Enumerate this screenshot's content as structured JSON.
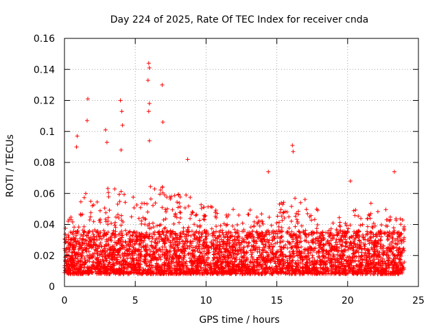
{
  "chart_data": {
    "type": "scatter",
    "title": "Day 224 of 2025, Rate Of TEC Index for receiver cnda",
    "xlabel": "GPS time / hours",
    "ylabel": "ROTI / TECUs",
    "xlim": [
      0,
      25
    ],
    "ylim": [
      0,
      0.16
    ],
    "x_ticks": [
      0,
      5,
      10,
      15,
      20,
      25
    ],
    "x_tick_labels": [
      "0",
      "5",
      "10",
      "15",
      "20",
      "25"
    ],
    "y_ticks": [
      0,
      0.02,
      0.04,
      0.06,
      0.08,
      0.1,
      0.12,
      0.14,
      0.16
    ],
    "y_tick_labels": [
      "0",
      "0.02",
      "0.04",
      "0.06",
      "0.08",
      "0.1",
      "0.12",
      "0.14",
      "0.16"
    ],
    "grid": true,
    "marker": "+",
    "series_color": "#ff0000",
    "series": [
      {
        "name": "ROTI",
        "notable_points": [
          {
            "x": 0.9,
            "y": 0.097
          },
          {
            "x": 0.85,
            "y": 0.09
          },
          {
            "x": 1.6,
            "y": 0.107
          },
          {
            "x": 1.65,
            "y": 0.121
          },
          {
            "x": 2.9,
            "y": 0.101
          },
          {
            "x": 3.0,
            "y": 0.093
          },
          {
            "x": 3.95,
            "y": 0.12
          },
          {
            "x": 4.05,
            "y": 0.113
          },
          {
            "x": 4.1,
            "y": 0.104
          },
          {
            "x": 4.0,
            "y": 0.088
          },
          {
            "x": 5.95,
            "y": 0.144
          },
          {
            "x": 6.0,
            "y": 0.141
          },
          {
            "x": 5.9,
            "y": 0.133
          },
          {
            "x": 6.0,
            "y": 0.118
          },
          {
            "x": 5.95,
            "y": 0.113
          },
          {
            "x": 6.0,
            "y": 0.094
          },
          {
            "x": 6.9,
            "y": 0.13
          },
          {
            "x": 6.95,
            "y": 0.106
          },
          {
            "x": 8.7,
            "y": 0.082
          },
          {
            "x": 16.1,
            "y": 0.091
          },
          {
            "x": 16.15,
            "y": 0.087
          },
          {
            "x": 14.4,
            "y": 0.074
          },
          {
            "x": 23.3,
            "y": 0.074
          },
          {
            "x": 20.2,
            "y": 0.068
          }
        ],
        "hourly_envelope": [
          {
            "hour": 0,
            "typical_low": 0.008,
            "typical_high": 0.045
          },
          {
            "hour": 1,
            "typical_low": 0.008,
            "typical_high": 0.06
          },
          {
            "hour": 2,
            "typical_low": 0.008,
            "typical_high": 0.055
          },
          {
            "hour": 3,
            "typical_low": 0.008,
            "typical_high": 0.065
          },
          {
            "hour": 4,
            "typical_low": 0.008,
            "typical_high": 0.065
          },
          {
            "hour": 5,
            "typical_low": 0.008,
            "typical_high": 0.055
          },
          {
            "hour": 6,
            "typical_low": 0.008,
            "typical_high": 0.065
          },
          {
            "hour": 7,
            "typical_low": 0.008,
            "typical_high": 0.06
          },
          {
            "hour": 8,
            "typical_low": 0.008,
            "typical_high": 0.06
          },
          {
            "hour": 9,
            "typical_low": 0.008,
            "typical_high": 0.055
          },
          {
            "hour": 10,
            "typical_low": 0.008,
            "typical_high": 0.055
          },
          {
            "hour": 11,
            "typical_low": 0.008,
            "typical_high": 0.05
          },
          {
            "hour": 12,
            "typical_low": 0.008,
            "typical_high": 0.05
          },
          {
            "hour": 13,
            "typical_low": 0.008,
            "typical_high": 0.05
          },
          {
            "hour": 14,
            "typical_low": 0.008,
            "typical_high": 0.045
          },
          {
            "hour": 15,
            "typical_low": 0.008,
            "typical_high": 0.055
          },
          {
            "hour": 16,
            "typical_low": 0.008,
            "typical_high": 0.06
          },
          {
            "hour": 17,
            "typical_low": 0.008,
            "typical_high": 0.05
          },
          {
            "hour": 18,
            "typical_low": 0.008,
            "typical_high": 0.045
          },
          {
            "hour": 19,
            "typical_low": 0.008,
            "typical_high": 0.045
          },
          {
            "hour": 20,
            "typical_low": 0.008,
            "typical_high": 0.05
          },
          {
            "hour": 21,
            "typical_low": 0.008,
            "typical_high": 0.055
          },
          {
            "hour": 22,
            "typical_low": 0.008,
            "typical_high": 0.05
          },
          {
            "hour": 23,
            "typical_low": 0.008,
            "typical_high": 0.045
          }
        ],
        "time_range_hours": [
          0,
          24
        ]
      }
    ]
  }
}
